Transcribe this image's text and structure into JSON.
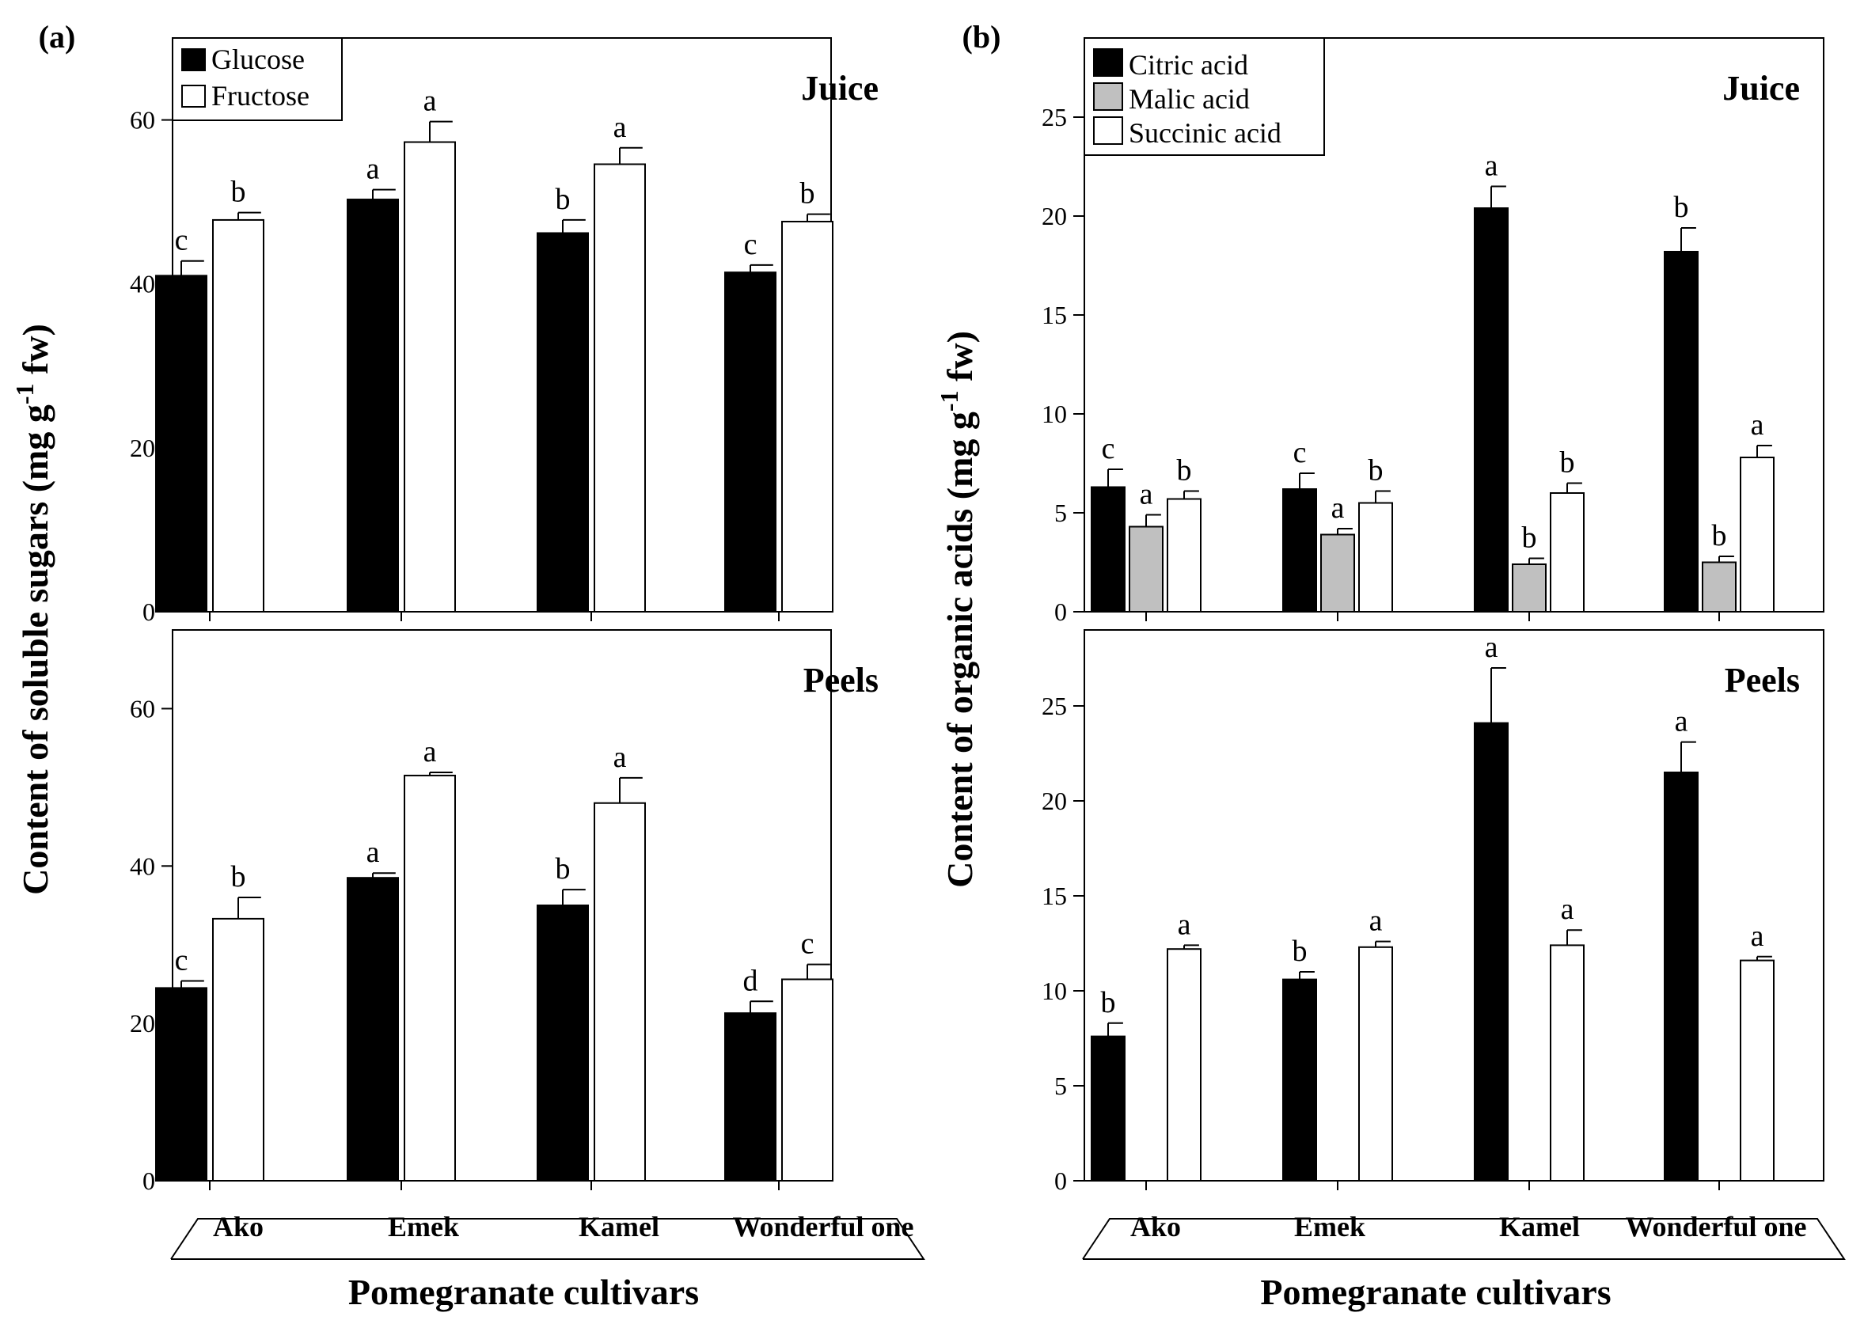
{
  "figure": {
    "xlabel": "Pomegranate cultivars",
    "categories": [
      "Ako",
      "Emek",
      "Kamel",
      "Wonderful one"
    ]
  },
  "chart_data": [
    {
      "panel_label": "(a)",
      "type": "bar",
      "ylabel": "Content of soluble sugars (mg g⁻¹ fw)",
      "ylabel_main": "Content of soluble sugars (mg g",
      "ylabel_sup": "-1",
      "ylabel_tail": " fw)",
      "legend": [
        "Glucose",
        "Fructose"
      ],
      "series_names": [
        "Glucose",
        "Fructose"
      ],
      "series_colors": [
        "#000000",
        "#ffffff"
      ],
      "subplots": [
        {
          "title": "Juice",
          "ylim": [
            0,
            70
          ],
          "yticks": [
            0,
            20,
            40,
            60
          ],
          "series": [
            {
              "name": "Glucose",
              "values": [
                41,
                50.3,
                46.2,
                41.4
              ],
              "errors": [
                1.8,
                1.2,
                1.6,
                0.9
              ],
              "letters": [
                "c",
                "a",
                "b",
                "c"
              ]
            },
            {
              "name": "Fructose",
              "values": [
                47.8,
                57.3,
                54.6,
                47.6
              ],
              "errors": [
                0.9,
                2.5,
                2.0,
                0.9
              ],
              "letters": [
                "b",
                "a",
                "a",
                "b"
              ]
            }
          ]
        },
        {
          "title": "Peels",
          "ylim": [
            0,
            70
          ],
          "yticks": [
            0,
            20,
            40,
            60
          ],
          "series": [
            {
              "name": "Glucose",
              "values": [
                24.5,
                38.5,
                35,
                21.3
              ],
              "errors": [
                0.9,
                0.6,
                2.0,
                1.5
              ],
              "letters": [
                "c",
                "a",
                "b",
                "d"
              ]
            },
            {
              "name": "Fructose",
              "values": [
                33.3,
                51.5,
                48,
                25.6
              ],
              "errors": [
                2.7,
                0.4,
                3.2,
                1.9
              ],
              "letters": [
                "b",
                "a",
                "a",
                "c"
              ]
            }
          ]
        }
      ]
    },
    {
      "panel_label": "(b)",
      "type": "bar",
      "ylabel": "Content of organic acids (mg g⁻¹ fw)",
      "ylabel_main": "Content of organic acids (mg g",
      "ylabel_sup": "-1",
      "ylabel_tail": " fw)",
      "legend": [
        "Citric acid",
        "Malic acid",
        "Succinic acid"
      ],
      "series_names": [
        "Citric acid",
        "Malic acid",
        "Succinic acid"
      ],
      "series_colors": [
        "#000000",
        "#c0c0c0",
        "#ffffff"
      ],
      "subplots": [
        {
          "title": "Juice",
          "ylim": [
            0,
            29
          ],
          "yticks": [
            0,
            5,
            10,
            15,
            20,
            25
          ],
          "series": [
            {
              "name": "Citric acid",
              "values": [
                6.3,
                6.2,
                20.4,
                18.2
              ],
              "errors": [
                0.9,
                0.8,
                1.1,
                1.2
              ],
              "letters": [
                "c",
                "c",
                "a",
                "b"
              ]
            },
            {
              "name": "Malic acid",
              "values": [
                4.3,
                3.9,
                2.4,
                2.5
              ],
              "errors": [
                0.6,
                0.3,
                0.3,
                0.3
              ],
              "letters": [
                "a",
                "a",
                "b",
                "b"
              ]
            },
            {
              "name": "Succinic acid",
              "values": [
                5.7,
                5.5,
                6.0,
                7.8
              ],
              "errors": [
                0.4,
                0.6,
                0.5,
                0.6
              ],
              "letters": [
                "b",
                "b",
                "b",
                "a"
              ]
            }
          ]
        },
        {
          "title": "Peels",
          "ylim": [
            0,
            29
          ],
          "yticks": [
            0,
            5,
            10,
            15,
            20,
            25
          ],
          "series": [
            {
              "name": "Citric acid",
              "values": [
                7.6,
                10.6,
                24.1,
                21.5
              ],
              "errors": [
                0.7,
                0.4,
                2.9,
                1.6
              ],
              "letters": [
                "b",
                "b",
                "a",
                "a"
              ]
            },
            {
              "name": "Malic acid",
              "values": [
                null,
                null,
                null,
                null
              ],
              "errors": [
                null,
                null,
                null,
                null
              ],
              "letters": [
                null,
                null,
                null,
                null
              ]
            },
            {
              "name": "Succinic acid",
              "values": [
                12.2,
                12.3,
                12.4,
                11.6
              ],
              "errors": [
                0.2,
                0.3,
                0.8,
                0.2
              ],
              "letters": [
                "a",
                "a",
                "a",
                "a"
              ]
            }
          ]
        }
      ]
    }
  ]
}
